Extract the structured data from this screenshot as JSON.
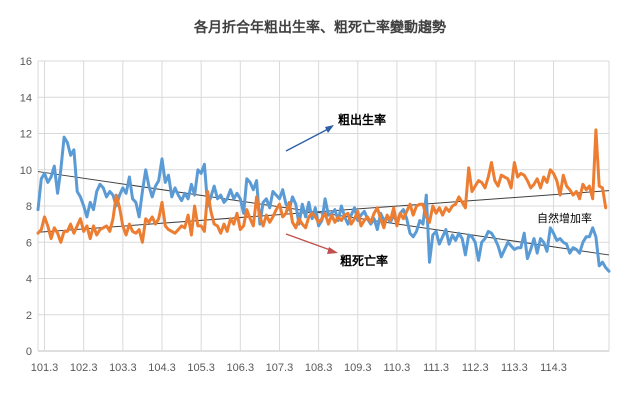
{
  "chart_data": {
    "type": "line",
    "title": "各月折合年粗出生率、粗死亡率變動趨勢",
    "xlabel": "",
    "ylabel": "",
    "ylim": [
      0,
      16
    ],
    "y_ticks": [
      0,
      2,
      4,
      6,
      8,
      10,
      12,
      14,
      16
    ],
    "x_ticks": [
      "101.3",
      "102.3",
      "103.3",
      "104.3",
      "105.3",
      "106.3",
      "107.3",
      "108.3",
      "109.3",
      "110.3",
      "111.3",
      "112.3",
      "113.3",
      "114.3"
    ],
    "x_start": "101.1",
    "x_end": "114.6",
    "grid": true,
    "legend": "none",
    "series": [
      {
        "name": "粗出生率",
        "color": "#5B9BD5",
        "values": [
          7.8,
          9.5,
          9.8,
          9.3,
          9.6,
          10.2,
          8.7,
          10.0,
          11.8,
          11.5,
          10.8,
          11.1,
          8.8,
          8.5,
          8.0,
          7.4,
          8.2,
          7.8,
          8.8,
          9.2,
          9.0,
          8.5,
          8.8,
          8.6,
          8.0,
          8.6,
          9.0,
          8.7,
          9.6,
          8.4,
          8.2,
          7.4,
          8.8,
          10.0,
          9.1,
          8.5,
          9.1,
          9.4,
          10.6,
          9.3,
          9.7,
          8.5,
          9.0,
          8.6,
          8.3,
          8.7,
          8.4,
          9.2,
          8.6,
          10.0,
          9.8,
          10.3,
          8.0,
          8.5,
          9.1,
          8.4,
          8.6,
          8.2,
          8.4,
          8.9,
          8.4,
          8.7,
          8.4,
          7.6,
          9.5,
          9.3,
          8.9,
          9.4,
          7.0,
          8.2,
          8.4,
          7.9,
          8.8,
          8.6,
          8.4,
          8.9,
          8.1,
          7.8,
          8.5,
          8.1,
          7.0,
          8.1,
          7.4,
          8.2,
          7.3,
          7.9,
          6.9,
          7.2,
          8.4,
          7.5,
          7.6,
          7.8,
          7.2,
          8.0,
          7.4,
          7.0,
          7.5,
          7.9,
          7.2,
          7.5,
          7.7,
          7.3,
          7.0,
          7.3,
          6.7,
          7.6,
          7.2,
          7.4,
          7.1,
          7.5,
          7.1,
          7.6,
          7.8,
          7.3,
          6.5,
          6.3,
          6.6,
          7.2,
          7.0,
          8.6,
          4.9,
          6.4,
          6.6,
          5.9,
          6.3,
          6.7,
          5.9,
          6.4,
          6.1,
          6.5,
          6.2,
          5.3,
          6.4,
          6.3,
          6.0,
          5.0,
          6.0,
          6.2,
          6.6,
          6.5,
          6.2,
          5.8,
          5.2,
          5.6,
          6.0,
          5.8,
          5.6,
          5.7,
          5.7,
          6.5,
          5.1,
          5.6,
          6.2,
          5.4,
          6.2,
          6.0,
          5.5,
          6.8,
          6.5,
          6.1,
          6.2,
          6.0,
          5.9,
          5.4,
          5.7,
          5.6,
          5.4,
          6.0,
          6.3,
          6.3,
          6.8,
          6.3,
          4.7,
          4.9,
          4.6,
          4.4
        ]
      },
      {
        "name": "粗死亡率",
        "color": "#ED7D31",
        "values": [
          6.5,
          6.7,
          7.4,
          6.9,
          6.2,
          6.8,
          6.5,
          6.0,
          6.6,
          6.6,
          7.0,
          6.5,
          6.9,
          7.3,
          6.6,
          6.9,
          6.2,
          6.9,
          6.4,
          6.7,
          6.8,
          6.9,
          6.6,
          7.3,
          8.6,
          7.9,
          6.9,
          6.4,
          7.0,
          6.6,
          6.5,
          6.7,
          6.0,
          7.3,
          7.1,
          7.4,
          7.0,
          7.3,
          8.2,
          6.9,
          6.7,
          6.6,
          6.5,
          6.7,
          6.9,
          6.8,
          7.5,
          6.4,
          8.0,
          6.9,
          6.9,
          6.6,
          8.8,
          7.7,
          7.0,
          6.9,
          6.5,
          7.0,
          6.6,
          7.3,
          7.0,
          7.6,
          6.7,
          6.9,
          7.8,
          7.3,
          6.9,
          8.5,
          7.4,
          6.9,
          7.5,
          7.1,
          7.4,
          7.8,
          8.1,
          7.4,
          7.6,
          8.2,
          7.1,
          6.8,
          7.3,
          7.0,
          6.8,
          7.4,
          7.6,
          7.4,
          7.1,
          7.3,
          7.6,
          7.0,
          7.5,
          7.1,
          7.4,
          7.2,
          7.5,
          7.6,
          7.0,
          7.3,
          7.7,
          6.9,
          7.2,
          7.4,
          7.1,
          7.6,
          7.9,
          7.3,
          6.8,
          7.5,
          7.2,
          7.9,
          6.9,
          7.6,
          7.3,
          7.7,
          8.1,
          7.5,
          8.0,
          8.1,
          8.1,
          7.4,
          7.1,
          8.0,
          7.6,
          7.9,
          7.5,
          7.9,
          7.7,
          8.0,
          8.1,
          8.5,
          8.2,
          7.9,
          10.1,
          8.8,
          9.1,
          9.4,
          9.3,
          9.0,
          9.6,
          10.4,
          9.4,
          9.1,
          9.7,
          9.6,
          9.5,
          9.0,
          10.4,
          9.6,
          9.8,
          9.7,
          9.4,
          9.0,
          9.2,
          9.5,
          9.0,
          9.6,
          9.3,
          10.0,
          9.8,
          9.4,
          8.6,
          9.7,
          9.1,
          8.9,
          8.6,
          8.8,
          8.4,
          9.2,
          8.9,
          9.1,
          8.4,
          12.2,
          9.1,
          9.0,
          7.9
        ]
      }
    ],
    "trendlines": [
      {
        "name": "粗出生率",
        "start": 9.9,
        "end": 5.3,
        "color": "#404040"
      },
      {
        "name": "粗死亡率",
        "start": 6.55,
        "end": 8.85,
        "color": "#404040"
      }
    ],
    "annotations": [
      {
        "text": "粗出生率",
        "color": "#4472C4"
      },
      {
        "text": "粗死亡率",
        "color": "#C0504D"
      },
      {
        "text": "自然增加率",
        "color": "#4F6228"
      }
    ]
  }
}
